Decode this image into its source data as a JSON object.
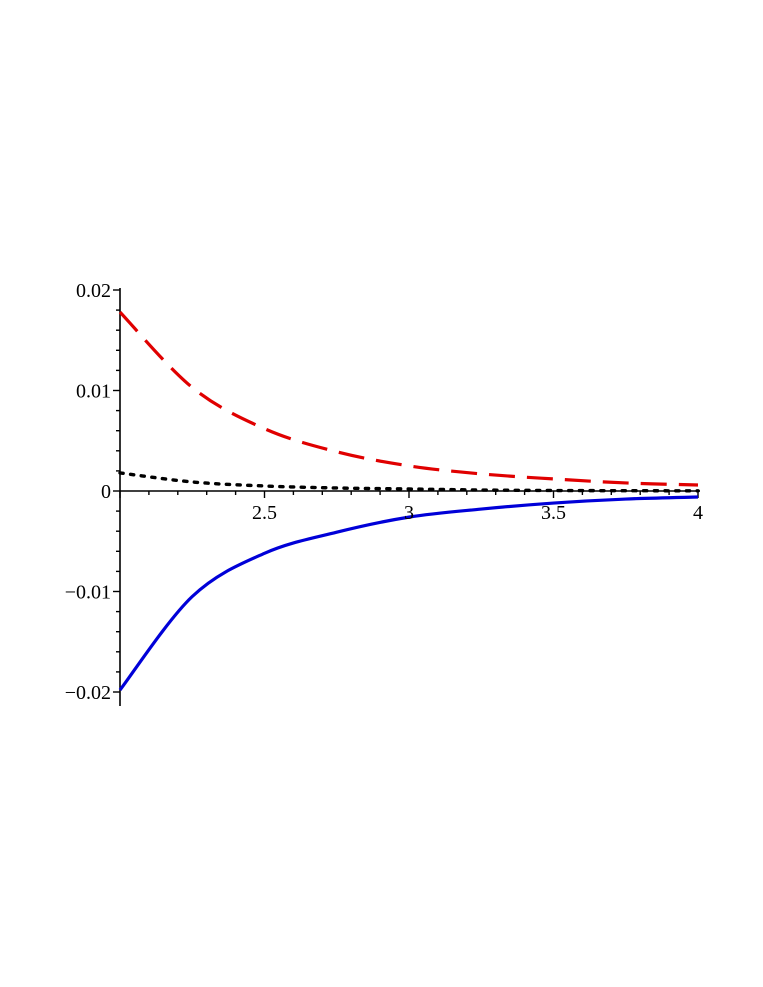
{
  "chart_data": {
    "type": "line",
    "title": "",
    "xlabel": "",
    "ylabel": "",
    "xlim": [
      2,
      4
    ],
    "ylim": [
      -0.02,
      0.02
    ],
    "grid": false,
    "legend": "none",
    "x_ticks": [
      {
        "value": 2.5,
        "label": "2.5"
      },
      {
        "value": 3,
        "label": "3"
      },
      {
        "value": 3.5,
        "label": "3.5"
      },
      {
        "value": 4,
        "label": "4"
      }
    ],
    "y_ticks": [
      {
        "value": 0.02,
        "label": "0.02"
      },
      {
        "value": 0.01,
        "label": "0.01"
      },
      {
        "value": 0,
        "label": "0"
      },
      {
        "value": -0.01,
        "label": "−0.01"
      },
      {
        "value": -0.02,
        "label": "−0.02"
      }
    ],
    "x": [
      2.0,
      2.25,
      2.5,
      2.75,
      3.0,
      3.25,
      3.5,
      3.75,
      4.0
    ],
    "series": [
      {
        "style": "dashed",
        "color": "#e00000",
        "values": [
          0.0178,
          0.0103,
          0.0062,
          0.0039,
          0.0025,
          0.0017,
          0.0012,
          0.0008,
          0.0006
        ]
      },
      {
        "style": "dotted",
        "color": "#000000",
        "values": [
          0.0018,
          0.0009,
          0.0005,
          0.0003,
          0.0002,
          0.0001,
          5e-05,
          3e-05,
          2e-05
        ]
      },
      {
        "style": "solid",
        "color": "#0000d8",
        "values": [
          -0.0198,
          -0.0105,
          -0.0062,
          -0.0041,
          -0.0026,
          -0.0018,
          -0.0012,
          -0.0008,
          -0.0006
        ]
      }
    ]
  }
}
